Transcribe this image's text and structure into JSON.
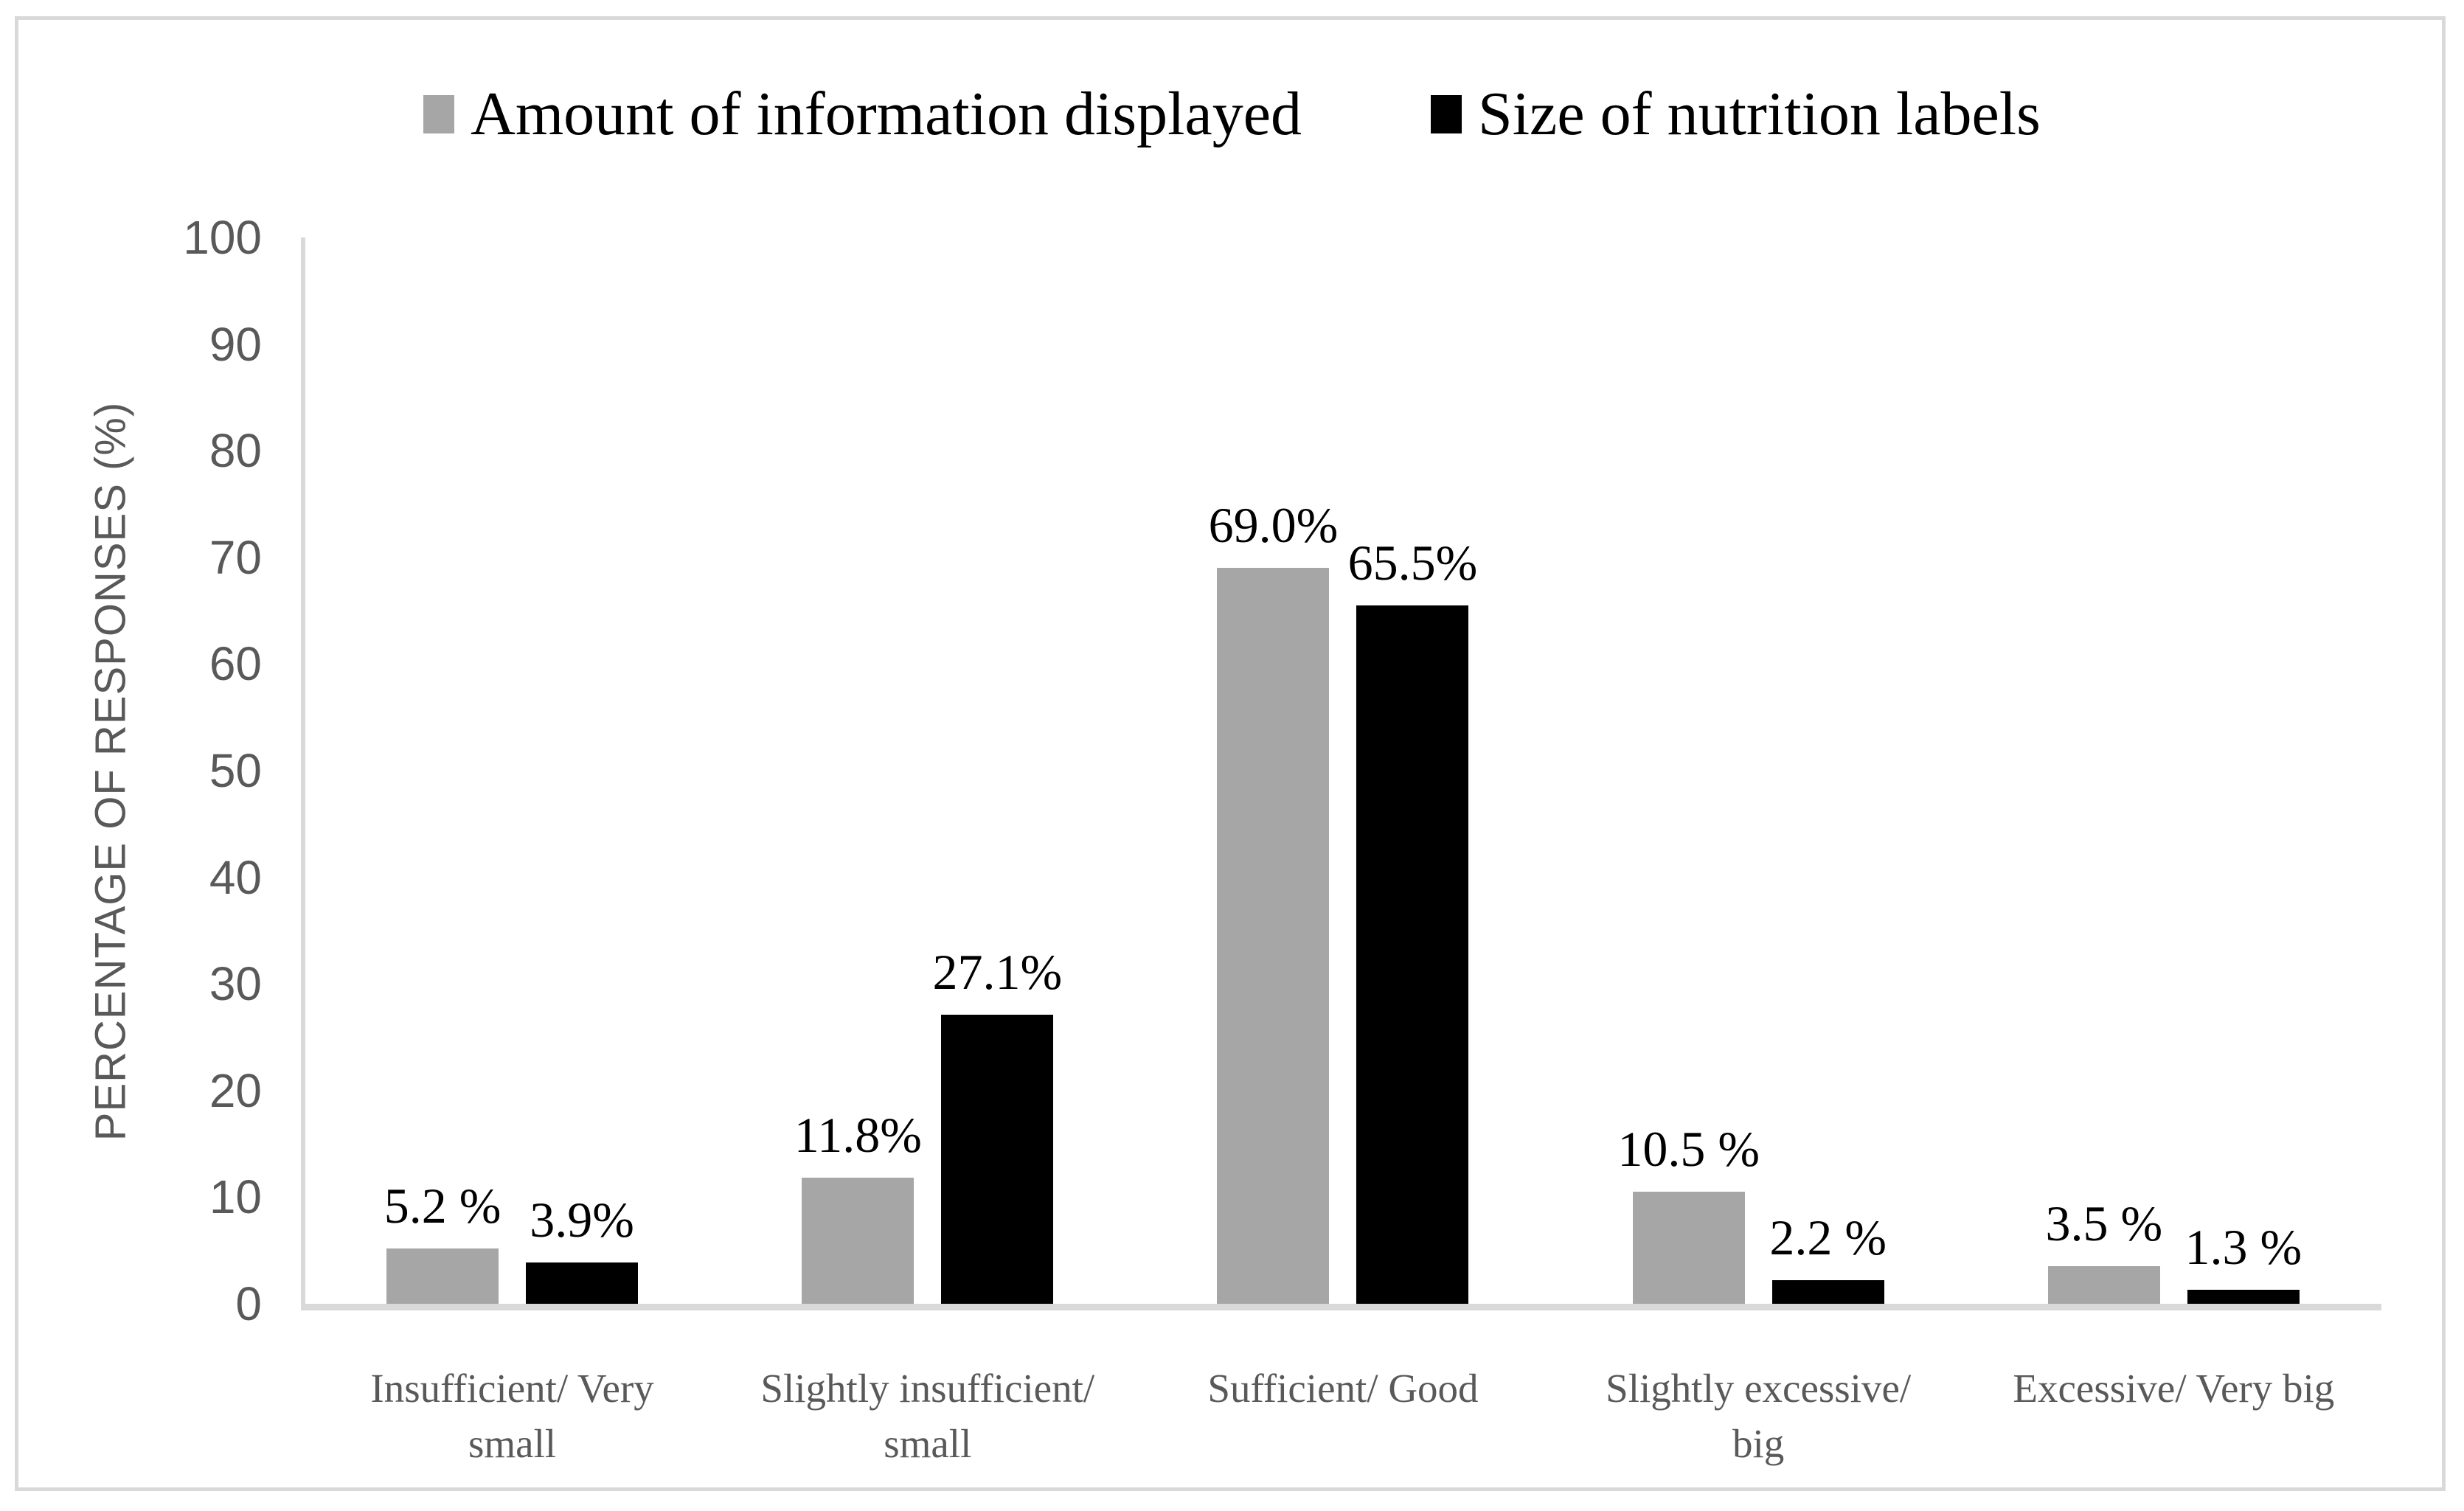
{
  "figure": {
    "background": "#ffffff",
    "border_color": "#d9d9d9",
    "axis_line_color": "#d9d9d9",
    "text_color_axis": "#595959"
  },
  "legend": {
    "items": [
      {
        "label": "Amount of information displayed",
        "color": "#a6a6a6"
      },
      {
        "label": "Size of nutrition labels",
        "color": "#000000"
      }
    ]
  },
  "chart_data": {
    "type": "bar",
    "title": "",
    "xlabel": "",
    "ylabel": "PERCENTAGE OF RESPONSES (%)",
    "ylim": [
      0,
      100
    ],
    "ytick_step": 10,
    "yticks": [
      "100",
      "90",
      "80",
      "70",
      "60",
      "50",
      "40",
      "30",
      "20",
      "10",
      "0"
    ],
    "grid": false,
    "legend_position": "top",
    "categories": [
      "Insufficient/ Very\nsmall",
      "Slightly insufficient/\nsmall",
      "Sufficient/ Good",
      "Slightly excessive/\nbig",
      "Excessive/ Very big"
    ],
    "series": [
      {
        "name": "Amount of information displayed",
        "color": "#a6a6a6",
        "values": [
          5.2,
          11.8,
          69.0,
          10.5,
          3.5
        ],
        "labels": [
          "5.2 %",
          "11.8%",
          "69.0%",
          "10.5 %",
          "3.5 %"
        ]
      },
      {
        "name": "Size of nutrition labels",
        "color": "#000000",
        "values": [
          3.9,
          27.1,
          65.5,
          2.2,
          1.3
        ],
        "labels": [
          "3.9%",
          "27.1%",
          "65.5%",
          "2.2 %",
          "1.3 %"
        ]
      }
    ]
  }
}
